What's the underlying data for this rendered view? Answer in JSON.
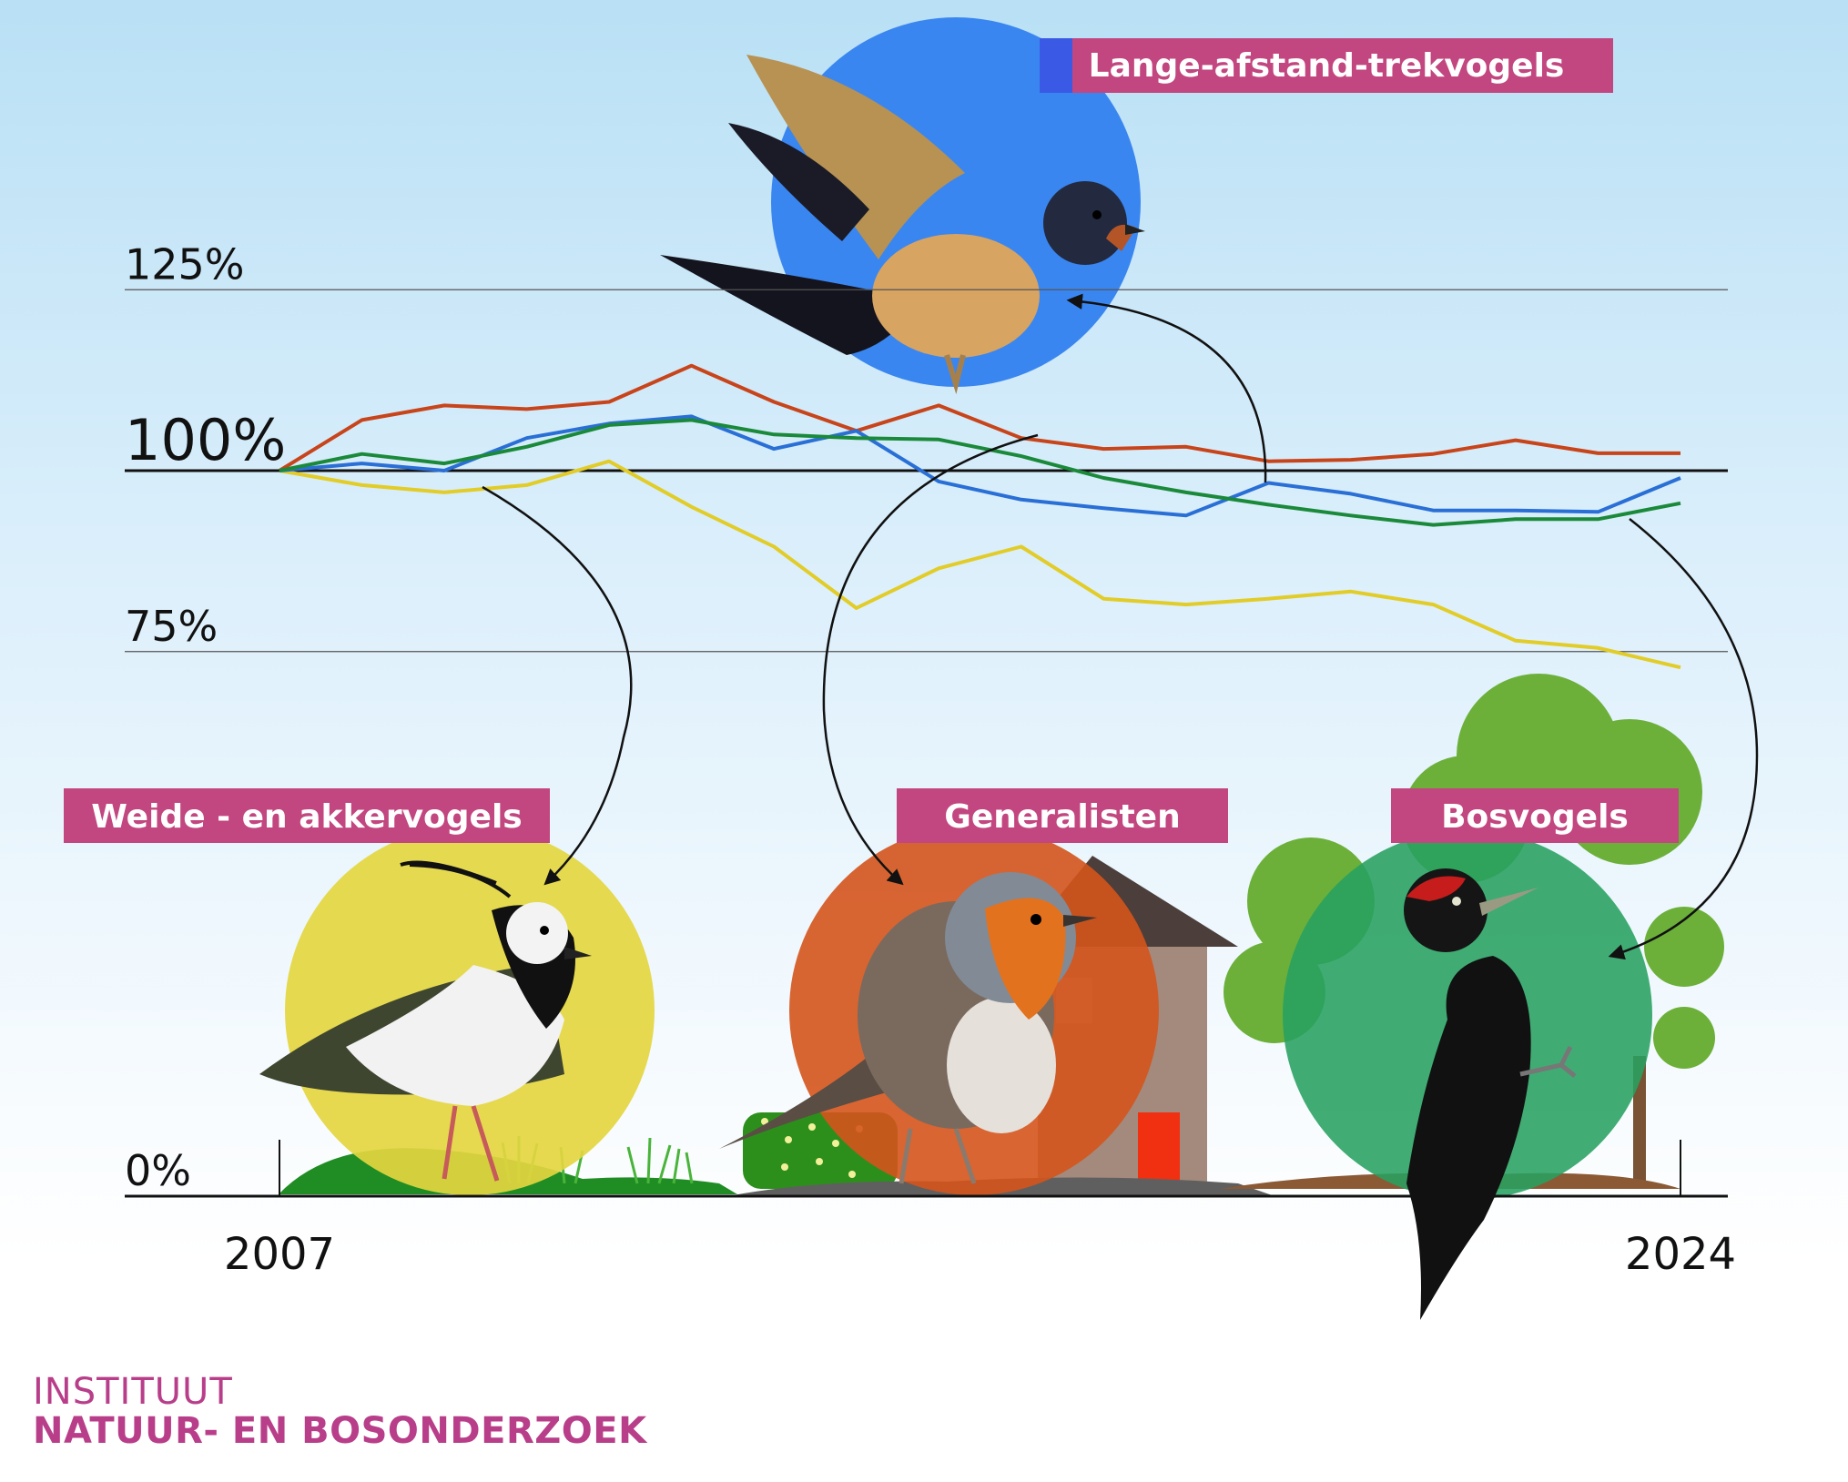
{
  "chart_data": {
    "type": "line",
    "x": [
      2007,
      2008,
      2009,
      2010,
      2011,
      2012,
      2013,
      2014,
      2015,
      2016,
      2017,
      2018,
      2019,
      2020,
      2021,
      2022,
      2023,
      2024
    ],
    "xticks": [
      "2007",
      "2024"
    ],
    "yticks": [
      "0%",
      "75%",
      "100%",
      "125%"
    ],
    "ytick_values": [
      0,
      75,
      100,
      125
    ],
    "series": [
      {
        "name": "Lange-afstand-trekvogels",
        "color": "#c8441a",
        "values": [
          100,
          107,
          109,
          108.5,
          109.5,
          114.5,
          109.5,
          105.5,
          109,
          104.5,
          103,
          103.3,
          101.3,
          101.5,
          102.3,
          104.2,
          102.4,
          102.4
        ]
      },
      {
        "name": "Weide - en akkervogels",
        "color": "#e2cc28",
        "values": [
          100,
          98,
          97,
          98,
          101.3,
          95,
          89.5,
          81,
          86.5,
          89.5,
          82.3,
          81.5,
          82.3,
          83.3,
          81.5,
          76.5,
          75.5,
          72.8
        ]
      },
      {
        "name": "Generalisten",
        "color": "#2a6fd6",
        "values": [
          100,
          101,
          100,
          104.5,
          106.5,
          107.5,
          103,
          105.5,
          98.5,
          96,
          94.8,
          93.8,
          98.3,
          96.8,
          94.5,
          94.5,
          94.3,
          99
        ]
      },
      {
        "name": "Bosvogels",
        "color": "#1a8a3a",
        "values": [
          100,
          102.3,
          101,
          103.3,
          106.3,
          107,
          105,
          104.5,
          104.3,
          102,
          99,
          97,
          95.3,
          93.8,
          92.5,
          93.3,
          93.3,
          95.5
        ]
      }
    ],
    "ylim": [
      0,
      125
    ],
    "grid": true
  },
  "labels": {
    "migrants": "Lange-afstand-trekvogels",
    "farmland": "Weide - en akkervogels",
    "generalists": "Generalisten",
    "forest": "Bosvogels"
  },
  "colors": {
    "badge": "#c2467f",
    "migrant_circle": "#3a86f0",
    "farmland_circle": "#e4d640",
    "generalist_circle": "#d4541c",
    "forest_circle": "#27a060",
    "tree": "#6cb03a"
  },
  "logo": {
    "line1": "INSTITUUT",
    "line2": "NATUUR- EN BOSONDERZOEK"
  }
}
